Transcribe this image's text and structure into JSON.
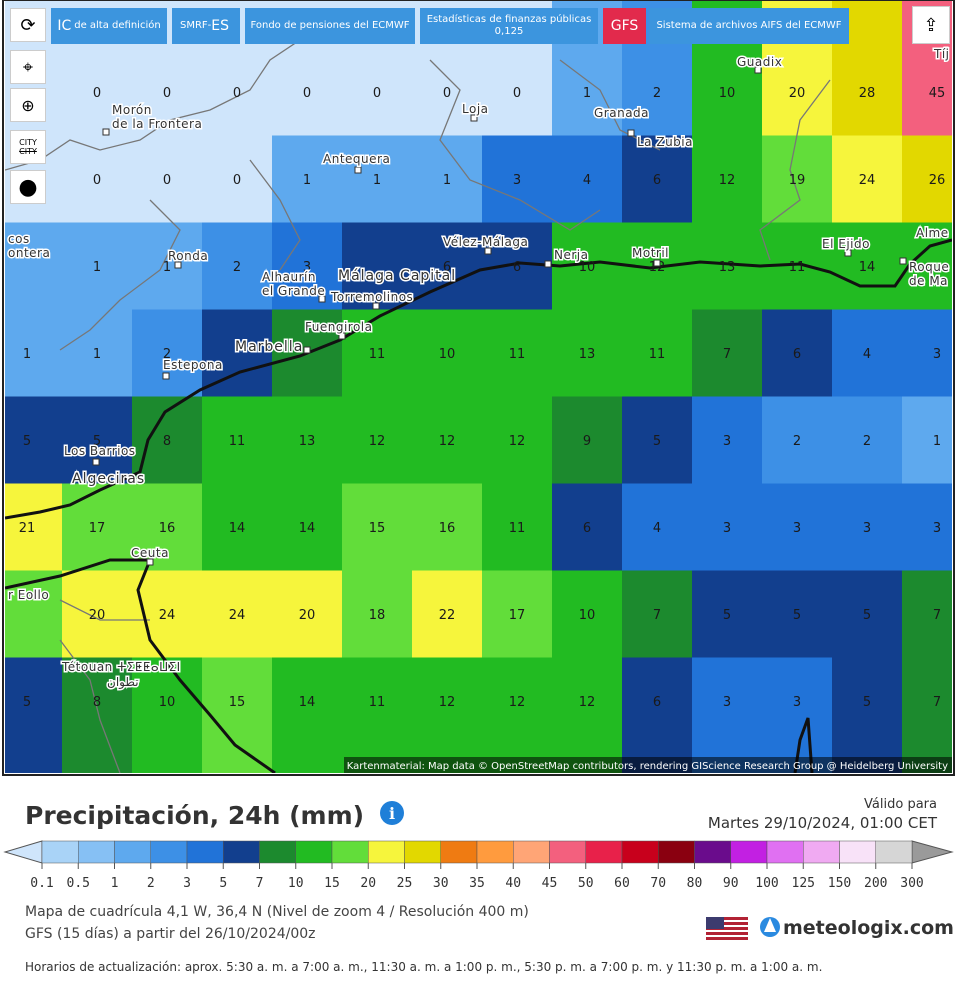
{
  "toolbar": {
    "buttons": [
      [
        "IC",
        "de alta definición"
      ],
      [
        "SMRF-",
        "ES"
      ],
      [
        "Fondo de pensiones del ECMWF"
      ],
      [
        "Estadísticas de finanzas públicas",
        "0,125"
      ],
      [
        "GFS"
      ],
      [
        "Sistema de archivos AIFS del ECMWF"
      ]
    ]
  },
  "side_tools": {
    "city": [
      "CITY",
      "CITY"
    ]
  },
  "map": {
    "grid": [
      [
        null,
        0,
        0,
        0,
        0,
        0,
        0,
        0,
        1,
        2,
        10,
        20,
        28,
        45
      ],
      [
        null,
        0,
        0,
        0,
        1,
        1,
        1,
        3,
        4,
        6,
        12,
        19,
        24,
        26
      ],
      [
        null,
        1,
        1,
        2,
        3,
        null,
        6,
        6,
        10,
        12,
        13,
        11,
        14,
        null
      ],
      [
        1,
        1,
        2,
        null,
        null,
        11,
        10,
        11,
        13,
        11,
        7,
        6,
        4,
        3
      ],
      [
        5,
        5,
        8,
        11,
        13,
        12,
        12,
        12,
        9,
        5,
        3,
        2,
        2,
        1
      ],
      [
        21,
        17,
        16,
        14,
        14,
        15,
        16,
        11,
        6,
        4,
        3,
        3,
        3,
        3
      ],
      [
        null,
        20,
        24,
        24,
        20,
        18,
        22,
        17,
        10,
        7,
        5,
        5,
        5,
        7
      ],
      [
        5,
        8,
        10,
        15,
        14,
        11,
        12,
        12,
        12,
        6,
        3,
        3,
        5,
        7
      ]
    ],
    "places": [
      [
        "Morón",
        "de la Frontera"
      ],
      [
        "Loja"
      ],
      [
        "Granada"
      ],
      [
        "La Zubia"
      ],
      [
        "Guadix"
      ],
      [
        "Antequera"
      ],
      [
        "Ronda"
      ],
      [
        "Vélez-Málaga"
      ],
      [
        "Nerja"
      ],
      [
        "Motril"
      ],
      [
        "El Ejido"
      ],
      [
        "Alme"
      ],
      [
        "Roque",
        "de Ma"
      ],
      [
        "Alhaurín",
        "el Grande"
      ],
      [
        "Málaga Capital"
      ],
      [
        "Torremolinos"
      ],
      [
        "Fuengirola"
      ],
      [
        "Marbella"
      ],
      [
        "Estepona"
      ],
      [
        "Los Barrios"
      ],
      [
        "Algeciras"
      ],
      [
        "Ceuta"
      ],
      [
        "Tétouan ⵜⵉⵟⵟⴰⵡⵉⵏ"
      ],
      [
        "تطوان"
      ],
      [
        "Tíj"
      ],
      [
        "cos",
        "ontera"
      ],
      [
        "r Eollo"
      ]
    ],
    "attribution": "Kartenmaterial: Map data © OpenStreetMap contributors, rendering GIScience Research Group @ Heidelberg University"
  },
  "legend": {
    "title": "Precipitación, 24h (mm)",
    "valid_label": "Válido para",
    "valid_time": "Martes 29/10/2024, 01:00 CET",
    "labels": [
      0.1,
      0.5,
      1,
      2,
      3,
      5,
      7,
      10,
      15,
      20,
      25,
      30,
      35,
      40,
      45,
      50,
      60,
      70,
      80,
      90,
      100,
      125,
      150,
      200,
      300
    ],
    "colors": [
      "#a9d3f7",
      "#86c0f4",
      "#5ea9ee",
      "#3d90e6",
      "#2173d8",
      "#123f8e",
      "#1c8a2e",
      "#22bb22",
      "#62dd3a",
      "#f6f53c",
      "#e2d800",
      "#ef7b12",
      "#ff9b3e",
      "#ffa576",
      "#f3607e",
      "#e8214a",
      "#c8001c",
      "#8a0010",
      "#6a0c8c",
      "#c220e2",
      "#e070f2",
      "#f0aaf2",
      "#f8e2f8",
      "#d6d6d6"
    ],
    "low_color": "#cfe5fb",
    "high_color": "#9a9a9a"
  },
  "footer": {
    "grid_info": "Mapa de cuadrícula 4,1 W, 36,4 N (Nivel de zoom 4 / Resolución 400 m)",
    "model_info": "GFS (15 días) a partir del 26/10/2024/00z",
    "logo": "meteologix.com",
    "update_times": "Horarios de actualización: aprox. 5:30 a. m. a 7:00 a. m., 11:30 a. m. a 1:00 p. m., 5:30 p. m. a 7:00 p. m. y 11:30 p. m. a 1:00 a. m."
  }
}
